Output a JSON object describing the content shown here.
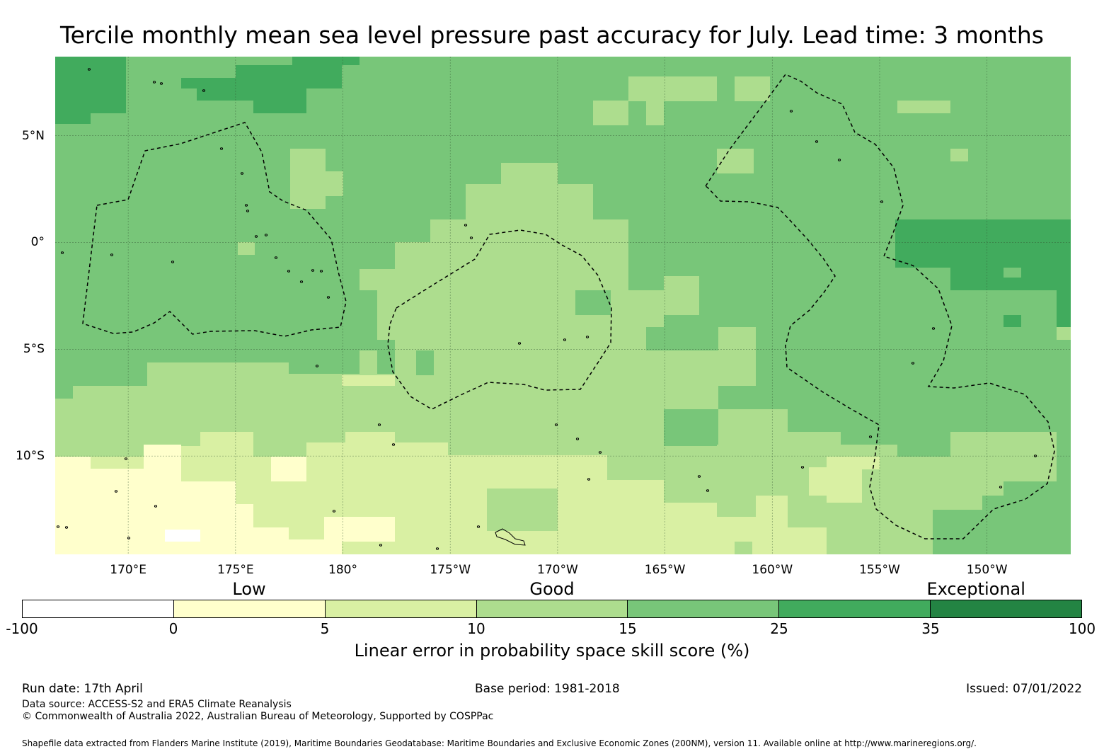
{
  "title": "Tercile monthly mean sea level pressure past accuracy for July. Lead time: 3 months",
  "map": {
    "lat_labels": [
      {
        "text": "5°N",
        "lat": 5
      },
      {
        "text": "0°",
        "lat": 0
      },
      {
        "text": "5°S",
        "lat": -5
      },
      {
        "text": "10°S",
        "lat": -10
      }
    ],
    "lon_labels": [
      {
        "text": "170°E",
        "lon": 170
      },
      {
        "text": "175°E",
        "lon": 175
      },
      {
        "text": "180°",
        "lon": 180
      },
      {
        "text": "175°W",
        "lon": 185
      },
      {
        "text": "170°W",
        "lon": 190
      },
      {
        "text": "165°W",
        "lon": 195
      },
      {
        "text": "160°W",
        "lon": 200
      },
      {
        "text": "155°W",
        "lon": 205
      },
      {
        "text": "150°W",
        "lon": 210
      }
    ],
    "lon_range_east": [
      166.6,
      213.9
    ],
    "lat_range": [
      -14.6,
      8.7
    ],
    "field_colors": {
      "lt0": "#ffffff",
      "c0_5": "#ffffcc",
      "c5_10": "#d9f0a3",
      "c10_15": "#addd8e",
      "c15_25": "#78c679",
      "c25_35": "#41ab5d",
      "c35_100": "#238443"
    }
  },
  "legend": {
    "categories": [
      {
        "text": "Low",
        "value": 2.5
      },
      {
        "text": "Good",
        "value": 12.5
      },
      {
        "text": "Exceptional",
        "value": 35
      }
    ],
    "ticks": [
      "-100",
      "0",
      "5",
      "10",
      "15",
      "25",
      "35",
      "100"
    ],
    "colors": [
      "#ffffff",
      "#ffffcc",
      "#d9f0a3",
      "#addd8e",
      "#78c679",
      "#41ab5d",
      "#238443"
    ],
    "title": "Linear error in probability space skill score (%)"
  },
  "footer": {
    "run_date": "Run date: 17th April",
    "base_period": "Base period: 1981-2018",
    "issued": "Issued: 07/01/2022",
    "data_source": "Data source: ACCESS-S2 and ERA5 Climate Reanalysis",
    "copyright": "© Commonwealth of Australia 2022, Australian Bureau of Meteorology, Supported by COSPPac",
    "shapefile": "Shapefile data extracted from Flanders Marine Institute (2019), Maritime Boundaries Geodatabase: Maritime Boundaries and Exclusive Economic Zones (200NM), version 11. Available online at http://www.marineregions.org/."
  }
}
